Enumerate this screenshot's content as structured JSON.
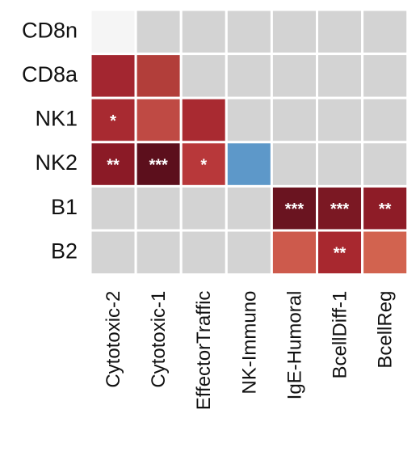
{
  "chart_data": {
    "type": "heatmap",
    "rows": [
      "CD8n",
      "CD8a",
      "NK1",
      "NK2",
      "B1",
      "B2"
    ],
    "columns": [
      "Cytotoxic-2",
      "Cytotoxic-1",
      "EffectorTraffic",
      "NK-Immuno",
      "IgE-Humoral",
      "BcellDiff-1",
      "BcellReg"
    ],
    "cells": [
      [
        {
          "fill": "#f5f5f5",
          "mark": ""
        },
        {
          "fill": "#d3d3d3",
          "mark": ""
        },
        {
          "fill": "#d3d3d3",
          "mark": ""
        },
        {
          "fill": "#d3d3d3",
          "mark": ""
        },
        {
          "fill": "#d3d3d3",
          "mark": ""
        },
        {
          "fill": "#d3d3d3",
          "mark": ""
        },
        {
          "fill": "#d3d3d3",
          "mark": ""
        }
      ],
      [
        {
          "fill": "#a32630",
          "mark": ""
        },
        {
          "fill": "#b23e3a",
          "mark": ""
        },
        {
          "fill": "#d3d3d3",
          "mark": ""
        },
        {
          "fill": "#d3d3d3",
          "mark": ""
        },
        {
          "fill": "#d3d3d3",
          "mark": ""
        },
        {
          "fill": "#d3d3d3",
          "mark": ""
        },
        {
          "fill": "#d3d3d3",
          "mark": ""
        }
      ],
      [
        {
          "fill": "#a82a31",
          "mark": "*"
        },
        {
          "fill": "#bf4a44",
          "mark": ""
        },
        {
          "fill": "#a92a31",
          "mark": ""
        },
        {
          "fill": "#d3d3d3",
          "mark": ""
        },
        {
          "fill": "#d3d3d3",
          "mark": ""
        },
        {
          "fill": "#d3d3d3",
          "mark": ""
        },
        {
          "fill": "#d3d3d3",
          "mark": ""
        }
      ],
      [
        {
          "fill": "#8b1a26",
          "mark": "**"
        },
        {
          "fill": "#5c0f1c",
          "mark": "***"
        },
        {
          "fill": "#b8383a",
          "mark": "*"
        },
        {
          "fill": "#5d98c9",
          "mark": ""
        },
        {
          "fill": "#d3d3d3",
          "mark": ""
        },
        {
          "fill": "#d3d3d3",
          "mark": ""
        },
        {
          "fill": "#d3d3d3",
          "mark": ""
        }
      ],
      [
        {
          "fill": "#d3d3d3",
          "mark": ""
        },
        {
          "fill": "#d3d3d3",
          "mark": ""
        },
        {
          "fill": "#d3d3d3",
          "mark": ""
        },
        {
          "fill": "#d3d3d3",
          "mark": ""
        },
        {
          "fill": "#6a1420",
          "mark": "***"
        },
        {
          "fill": "#7b1823",
          "mark": "***"
        },
        {
          "fill": "#8e1c27",
          "mark": "**"
        }
      ],
      [
        {
          "fill": "#d3d3d3",
          "mark": ""
        },
        {
          "fill": "#d3d3d3",
          "mark": ""
        },
        {
          "fill": "#d3d3d3",
          "mark": ""
        },
        {
          "fill": "#d3d3d3",
          "mark": ""
        },
        {
          "fill": "#cd5a4c",
          "mark": ""
        },
        {
          "fill": "#a8282f",
          "mark": "**"
        },
        {
          "fill": "#d2634f",
          "mark": ""
        }
      ]
    ],
    "colors": {
      "empty": "#d3d3d3",
      "background": "#ffffff",
      "mark_text": "#ffffff"
    },
    "legend": "none",
    "grid": "white cell borders",
    "title": "",
    "xlabel": "",
    "ylabel": ""
  }
}
